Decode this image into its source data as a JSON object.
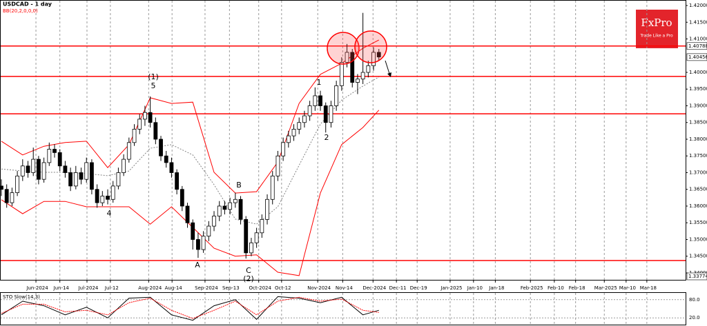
{
  "header": {
    "symbol": "USDCAD - 1 day",
    "indicator": "BB(20,2,0,0,0)"
  },
  "logo": {
    "brand": "FxPro",
    "tagline": "Trade Like a Pro"
  },
  "chart_data": [
    {
      "type": "candlestick",
      "ohlc": [
        [
          1.366,
          1.368,
          1.363,
          1.365
        ],
        [
          1.365,
          1.3665,
          1.3595,
          1.361
        ],
        [
          1.361,
          1.3655,
          1.36,
          1.364
        ],
        [
          1.364,
          1.3705,
          1.363,
          1.369
        ],
        [
          1.369,
          1.374,
          1.3675,
          1.372
        ],
        [
          1.372,
          1.3735,
          1.3685,
          1.37
        ],
        [
          1.37,
          1.3775,
          1.369,
          1.374
        ],
        [
          1.374,
          1.375,
          1.3665,
          1.368
        ],
        [
          1.368,
          1.3745,
          1.367,
          1.373
        ],
        [
          1.373,
          1.379,
          1.372,
          1.377
        ],
        [
          1.377,
          1.3785,
          1.3745,
          1.376
        ],
        [
          1.376,
          1.377,
          1.3705,
          1.372
        ],
        [
          1.372,
          1.3735,
          1.3685,
          1.37
        ],
        [
          1.37,
          1.3715,
          1.3645,
          1.366
        ],
        [
          1.366,
          1.372,
          1.365,
          1.37
        ],
        [
          1.37,
          1.3715,
          1.3665,
          1.368
        ],
        [
          1.368,
          1.3745,
          1.367,
          1.373
        ],
        [
          1.373,
          1.374,
          1.3635,
          1.365
        ],
        [
          1.365,
          1.3665,
          1.3595,
          1.361
        ],
        [
          1.361,
          1.3645,
          1.36,
          1.363
        ],
        [
          1.363,
          1.365,
          1.3605,
          1.362
        ],
        [
          1.362,
          1.3675,
          1.361,
          1.366
        ],
        [
          1.366,
          1.3715,
          1.365,
          1.37
        ],
        [
          1.37,
          1.3755,
          1.369,
          1.374
        ],
        [
          1.374,
          1.3805,
          1.373,
          1.379
        ],
        [
          1.379,
          1.3845,
          1.378,
          1.383
        ],
        [
          1.383,
          1.3875,
          1.3815,
          1.386
        ],
        [
          1.386,
          1.39,
          1.384,
          1.388
        ],
        [
          1.388,
          1.3928,
          1.3835,
          1.385
        ],
        [
          1.385,
          1.3865,
          1.3785,
          1.38
        ],
        [
          1.38,
          1.381,
          1.3735,
          1.375
        ],
        [
          1.375,
          1.3765,
          1.3715,
          1.373
        ],
        [
          1.373,
          1.3745,
          1.3685,
          1.37
        ],
        [
          1.37,
          1.371,
          1.3635,
          1.365
        ],
        [
          1.365,
          1.366,
          1.3585,
          1.36
        ],
        [
          1.36,
          1.361,
          1.3535,
          1.355
        ],
        [
          1.355,
          1.356,
          1.347,
          1.35
        ],
        [
          1.35,
          1.352,
          1.3445,
          1.347
        ],
        [
          1.347,
          1.3525,
          1.346,
          1.351
        ],
        [
          1.351,
          1.3555,
          1.3495,
          1.354
        ],
        [
          1.354,
          1.3585,
          1.3525,
          1.357
        ],
        [
          1.357,
          1.3615,
          1.3555,
          1.36
        ],
        [
          1.36,
          1.3615,
          1.3575,
          1.359
        ],
        [
          1.359,
          1.3625,
          1.3575,
          1.361
        ],
        [
          1.361,
          1.364,
          1.3595,
          1.362
        ],
        [
          1.362,
          1.363,
          1.3545,
          1.356
        ],
        [
          1.356,
          1.357,
          1.3443,
          1.346
        ],
        [
          1.346,
          1.3505,
          1.345,
          1.349
        ],
        [
          1.349,
          1.3535,
          1.3475,
          1.352
        ],
        [
          1.352,
          1.3575,
          1.3505,
          1.356
        ],
        [
          1.356,
          1.3635,
          1.3545,
          1.362
        ],
        [
          1.362,
          1.3705,
          1.3605,
          1.369
        ],
        [
          1.369,
          1.3765,
          1.3675,
          1.375
        ],
        [
          1.375,
          1.3805,
          1.3735,
          1.379
        ],
        [
          1.379,
          1.3825,
          1.3775,
          1.381
        ],
        [
          1.381,
          1.3845,
          1.3795,
          1.383
        ],
        [
          1.383,
          1.3865,
          1.3815,
          1.385
        ],
        [
          1.385,
          1.3885,
          1.3835,
          1.387
        ],
        [
          1.387,
          1.3915,
          1.3855,
          1.39
        ],
        [
          1.39,
          1.3955,
          1.3885,
          1.393
        ],
        [
          1.393,
          1.3945,
          1.3885,
          1.39
        ],
        [
          1.39,
          1.391,
          1.382,
          1.385
        ],
        [
          1.385,
          1.3915,
          1.3835,
          1.39
        ],
        [
          1.39,
          1.3975,
          1.3885,
          1.396
        ],
        [
          1.396,
          1.4045,
          1.3945,
          1.403
        ],
        [
          1.403,
          1.4085,
          1.4015,
          1.406
        ],
        [
          1.406,
          1.407,
          1.3955,
          1.397
        ],
        [
          1.397,
          1.3995,
          1.3935,
          1.398
        ],
        [
          1.398,
          1.4178,
          1.3965,
          1.4
        ],
        [
          1.4,
          1.4035,
          1.3985,
          1.402
        ],
        [
          1.402,
          1.4075,
          1.4005,
          1.406
        ],
        [
          1.406,
          1.407,
          1.4035,
          1.4046
        ]
      ],
      "colors": {
        "up": "#ffffff",
        "down": "#000000",
        "edge": "#000000"
      },
      "xlim": [
        -0.26,
        128.3
      ],
      "xticks": [
        {
          "value": 6.5,
          "label": "Jun-2024"
        },
        {
          "value": 11,
          "label": "Jun-14"
        },
        {
          "value": 16.1,
          "label": "Jul-2024"
        },
        {
          "value": 20.5,
          "label": "Jul-12"
        },
        {
          "value": 27.7,
          "label": "Aug-2024"
        },
        {
          "value": 32.1,
          "label": "Aug-14"
        },
        {
          "value": 38.3,
          "label": "Sep-2024"
        },
        {
          "value": 42.9,
          "label": "Sep-13"
        },
        {
          "value": 48.4,
          "label": "Oct-2024"
        },
        {
          "value": 52.7,
          "label": "Oct-12"
        },
        {
          "value": 59.5,
          "label": "Nov-2024"
        },
        {
          "value": 64.2,
          "label": "Nov-14"
        },
        {
          "value": 69.9,
          "label": "Dec-2024"
        },
        {
          "value": 74.3,
          "label": "Dec-11"
        },
        {
          "value": 78.2,
          "label": "Dec-19"
        },
        {
          "value": 84.4,
          "label": "Jan-2025"
        },
        {
          "value": 88.8,
          "label": "Jan-10"
        },
        {
          "value": 92.9,
          "label": "Jan-18"
        },
        {
          "value": 99.5,
          "label": "Feb-2025"
        },
        {
          "value": 104,
          "label": "Feb-10"
        },
        {
          "value": 108,
          "label": "Feb-18"
        },
        {
          "value": 113.4,
          "label": "Mar-2025"
        },
        {
          "value": 117.5,
          "label": "Mar-10"
        },
        {
          "value": 121.4,
          "label": "Mar-18"
        }
      ],
      "ylim": [
        1.33814,
        1.42165
      ],
      "yticks": [
        {
          "value": 1.42,
          "label": "1.42000"
        },
        {
          "value": 1.415,
          "label": "1.41500"
        },
        {
          "value": 1.41,
          "label": "1.41000"
        },
        {
          "value": 1.4,
          "label": "1.40000"
        },
        {
          "value": 1.395,
          "label": "1.39500"
        },
        {
          "value": 1.39,
          "label": "1.39000"
        },
        {
          "value": 1.385,
          "label": "1.38500"
        },
        {
          "value": 1.38,
          "label": "1.38000"
        },
        {
          "value": 1.375,
          "label": "1.37500"
        },
        {
          "value": 1.37,
          "label": "1.37000"
        },
        {
          "value": 1.365,
          "label": "1.36500"
        },
        {
          "value": 1.36,
          "label": "1.36000"
        },
        {
          "value": 1.355,
          "label": "1.35500"
        },
        {
          "value": 1.35,
          "label": "1.35000"
        },
        {
          "value": 1.345,
          "label": "1.34500"
        },
        {
          "value": 1.34,
          "label": "1.34000"
        }
      ],
      "grid": "x",
      "bands": {
        "x": [
          0,
          4,
          8,
          12,
          16,
          20,
          24,
          28,
          32,
          36,
          40,
          44,
          48,
          52,
          56,
          60,
          64,
          68,
          71
        ],
        "upper": [
          1.3794,
          1.3753,
          1.3779,
          1.379,
          1.3794,
          1.3715,
          1.3784,
          1.3924,
          1.3907,
          1.3911,
          1.3701,
          1.3639,
          1.3643,
          1.3732,
          1.3907,
          1.3994,
          1.4027,
          1.4072,
          1.4097
        ],
        "middle": [
          1.3711,
          1.3705,
          1.3701,
          1.3701,
          1.3697,
          1.3691,
          1.3705,
          1.3773,
          1.3784,
          1.3753,
          1.3664,
          1.3561,
          1.3546,
          1.3598,
          1.3722,
          1.3845,
          1.3917,
          1.3959,
          1.3986
        ],
        "lower": [
          1.3619,
          1.3577,
          1.3614,
          1.3614,
          1.3598,
          1.3598,
          1.3598,
          1.3546,
          1.3598,
          1.3536,
          1.3474,
          1.345,
          1.3454,
          1.3402,
          1.3392,
          1.3639,
          1.3784,
          1.3835,
          1.3887
        ],
        "color": "#ff0000",
        "middle_color": "#808080"
      },
      "levels": {
        "values": [
          1.40788,
          1.3988,
          1.3876,
          1.3437
        ],
        "color": "#ff0000"
      },
      "price_tags": [
        {
          "value": 1.40788,
          "label": "1.40788"
        },
        {
          "value": 1.40456,
          "label": "1.40456"
        },
        {
          "value": 1.33774,
          "label": "1.33774"
        }
      ],
      "annotations": [
        "(1)",
        "5",
        "4",
        "A",
        "B",
        "C",
        "(2)",
        "1",
        "2"
      ]
    },
    {
      "type": "line",
      "title": "STO Slow(14,3)",
      "x": [
        0,
        4,
        8,
        12,
        16,
        20,
        24,
        28,
        32,
        36,
        40,
        44,
        48,
        52,
        56,
        60,
        64,
        68,
        71
      ],
      "series": [
        {
          "color": "#000000",
          "values": [
            30,
            75,
            60,
            30,
            55,
            20,
            85,
            88,
            30,
            12,
            60,
            80,
            15,
            90,
            85,
            70,
            88,
            30,
            45
          ]
        },
        {
          "color": "#ff0000",
          "values": [
            35,
            65,
            65,
            40,
            45,
            30,
            70,
            85,
            45,
            18,
            45,
            75,
            30,
            75,
            88,
            75,
            82,
            45,
            38
          ]
        }
      ],
      "xlim": [
        -0.26,
        128.3
      ],
      "ylim": [
        0,
        100
      ],
      "yticks": [
        {
          "value": 80,
          "label": "80.0"
        },
        {
          "value": 20,
          "label": "20.0"
        }
      ]
    }
  ]
}
